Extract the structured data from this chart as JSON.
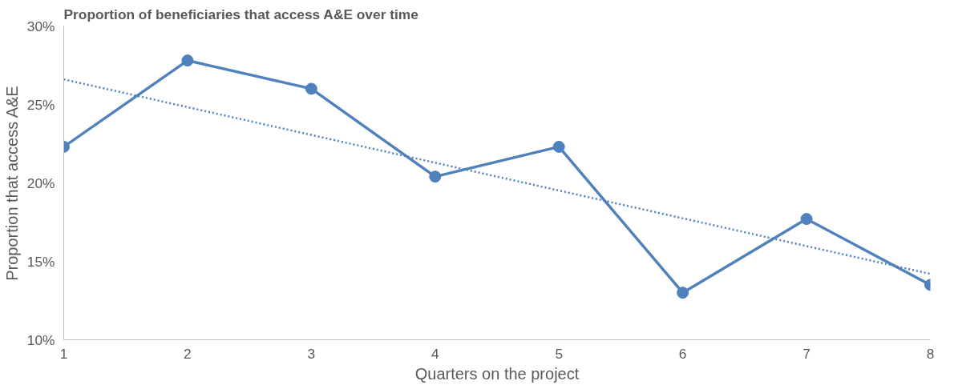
{
  "chart_data": {
    "type": "line",
    "title": "Proportion of beneficiaries that access A&E over time",
    "xlabel": "Quarters on the project",
    "ylabel": "Proportion that access A&E",
    "x": [
      1,
      2,
      3,
      4,
      5,
      6,
      7,
      8
    ],
    "series": [
      {
        "color": "#4f81bd",
        "values": [
          22.3,
          27.8,
          26.0,
          20.4,
          22.3,
          13.0,
          17.7,
          13.5
        ],
        "marker": "circle",
        "line_style": "solid"
      },
      {
        "color": "#4f81bd",
        "x": [
          1,
          8
        ],
        "values": [
          26.6,
          14.2
        ],
        "marker": "none",
        "line_style": "dotted"
      }
    ],
    "xlim": [
      1,
      8
    ],
    "xticks": [
      1,
      2,
      3,
      4,
      5,
      6,
      7,
      8
    ],
    "ylim": [
      10,
      30
    ],
    "yticks": [
      {
        "value": 10,
        "label": "10%"
      },
      {
        "value": 15,
        "label": "15%"
      },
      {
        "value": 20,
        "label": "20%"
      },
      {
        "value": 25,
        "label": "25%"
      },
      {
        "value": 30,
        "label": "30%"
      }
    ],
    "grid": false
  }
}
